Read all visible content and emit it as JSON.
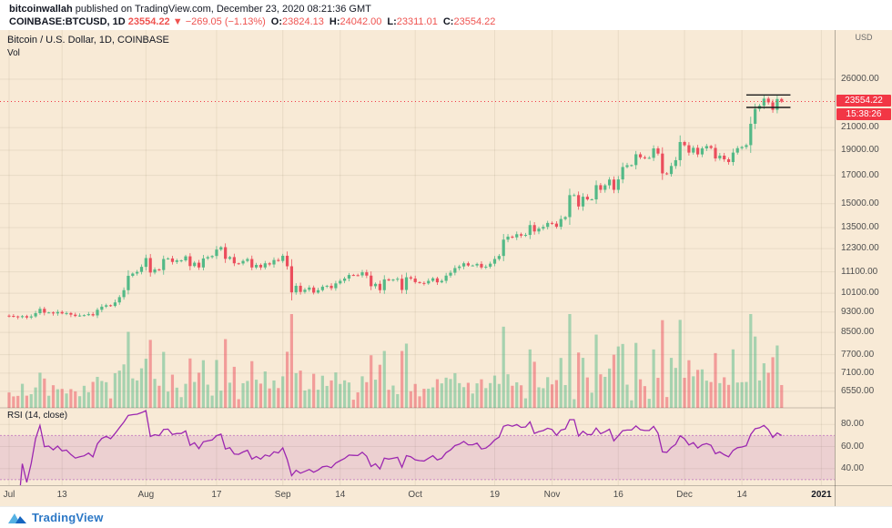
{
  "header": {
    "author": "bitcoinwallah",
    "published": "published on TradingView.com, December 23, 2020 08:21:36 GMT",
    "symbol": "COINBASE:BTCUSD, 1D",
    "last_price": "23554.22",
    "change": "▼ −269.05 (−1.13%)",
    "ohlc": [
      {
        "label": "O:",
        "value": "23824.13"
      },
      {
        "label": "H:",
        "value": "24042.00"
      },
      {
        "label": "L:",
        "value": "23311.01"
      },
      {
        "label": "C:",
        "value": "23554.22"
      }
    ]
  },
  "legend": {
    "title": "Bitcoin / U.S. Dollar, 1D, COINBASE",
    "vol": "Vol",
    "rsi": "RSI (14, close)"
  },
  "axis": {
    "currency": "USD",
    "price_label": "23554.22",
    "countdown": "15:38:26"
  },
  "footer": {
    "brand": "TradingView"
  },
  "colors": {
    "up": "#53b987",
    "down": "#eb4d5c",
    "vol_up": "rgba(83,185,135,0.5)",
    "vol_down": "rgba(235,77,92,0.5)",
    "rsi": "#9c27b0",
    "band": "rgba(156,39,176,0.13)",
    "band_edge": "rgba(156,39,176,0.45)",
    "price_line": "#f23645",
    "grid": "rgba(70,50,10,0.08)",
    "pattern": "#1c1c1c"
  },
  "chart_data": {
    "type": "candlestick+volume+rsi",
    "title": "Bitcoin / U.S. Dollar, 1D, COINBASE",
    "symbol": "COINBASE:BTCUSD",
    "interval": "1D",
    "scale": "log",
    "start_date": "2020-07-01",
    "end_date": "2020-12-23",
    "open_first": 9150,
    "current_price": 23554.22,
    "price_range": [
      6090,
      32300
    ],
    "price_gridlines": [
      26000,
      21000,
      19000,
      17000,
      15000,
      13500,
      12300,
      11100,
      10100,
      9300,
      8500,
      7700,
      7100,
      6550
    ],
    "price_axis_labels": [
      "26000.00",
      "21000.00",
      "19000.00",
      "17000.00",
      "15000.00",
      "13500.00",
      "12300.00",
      "11100.00",
      "10100.00",
      "9300.00",
      "8500.00",
      "7700.00",
      "7100.00",
      "6550.00"
    ],
    "rsi_gridlines": [
      80,
      60,
      40
    ],
    "rsi_axis_labels": [
      "80.00",
      "60.00",
      "40.00"
    ],
    "rsi_band": [
      30,
      70
    ],
    "rsi_range": [
      25,
      95
    ],
    "time_labels": [
      {
        "label": "Jul",
        "i": 0
      },
      {
        "label": "13",
        "i": 12
      },
      {
        "label": "Aug",
        "i": 31
      },
      {
        "label": "17",
        "i": 47
      },
      {
        "label": "Sep",
        "i": 62
      },
      {
        "label": "14",
        "i": 75
      },
      {
        "label": "Oct",
        "i": 92
      },
      {
        "label": "19",
        "i": 110
      },
      {
        "label": "Nov",
        "i": 123
      },
      {
        "label": "16",
        "i": 138
      },
      {
        "label": "Dec",
        "i": 153
      },
      {
        "label": "14",
        "i": 166
      },
      {
        "label": "2021",
        "i": 184
      }
    ],
    "pattern_lines": [
      {
        "price": 24250,
        "i1": 167,
        "i2": 177
      },
      {
        "price": 22950,
        "i1": 167,
        "i2": 177
      }
    ],
    "closes": [
      9140,
      9120,
      9090,
      9130,
      9075,
      9120,
      9250,
      9430,
      9270,
      9280,
      9240,
      9300,
      9240,
      9255,
      9190,
      9135,
      9155,
      9170,
      9210,
      9160,
      9390,
      9520,
      9580,
      9550,
      9700,
      9930,
      10240,
      10910,
      11020,
      11100,
      11350,
      11800,
      11070,
      11220,
      11190,
      11750,
      11780,
      11600,
      11680,
      11680,
      11890,
      11390,
      11560,
      11320,
      11780,
      11850,
      11910,
      12250,
      12380,
      11760,
      11850,
      11530,
      11520,
      11650,
      11750,
      11320,
      11450,
      11320,
      11530,
      11470,
      11700,
      11650,
      11920,
      11380,
      10140,
      10440,
      10160,
      10260,
      10360,
      10130,
      10240,
      10400,
      10440,
      10330,
      10550,
      10670,
      10780,
      10950,
      10940,
      10930,
      11080,
      10920,
      10420,
      10530,
      10240,
      10740,
      10690,
      10730,
      10770,
      10250,
      10840,
      10780,
      10610,
      10570,
      10550,
      10670,
      10790,
      10600,
      10670,
      10920,
      11060,
      11290,
      11370,
      11530,
      11420,
      11420,
      11500,
      11320,
      11360,
      11510,
      11750,
      11910,
      12800,
      12970,
      12930,
      13110,
      13030,
      13070,
      13650,
      13270,
      13440,
      13540,
      13780,
      13740,
      13550,
      14020,
      14140,
      15580,
      15580,
      14820,
      15470,
      15290,
      15290,
      16280,
      15950,
      16270,
      16690,
      15950,
      16700,
      17640,
      17780,
      17790,
      18660,
      18410,
      18360,
      18370,
      19150,
      18720,
      17150,
      17100,
      17720,
      18180,
      19700,
      19420,
      18800,
      19200,
      18650,
      19150,
      19350,
      19190,
      18320,
      18550,
      18250,
      18030,
      18800,
      19170,
      19270,
      19430,
      21350,
      22800,
      23120,
      23860,
      23470,
      22710,
      23820,
      23554.22
    ]
  }
}
